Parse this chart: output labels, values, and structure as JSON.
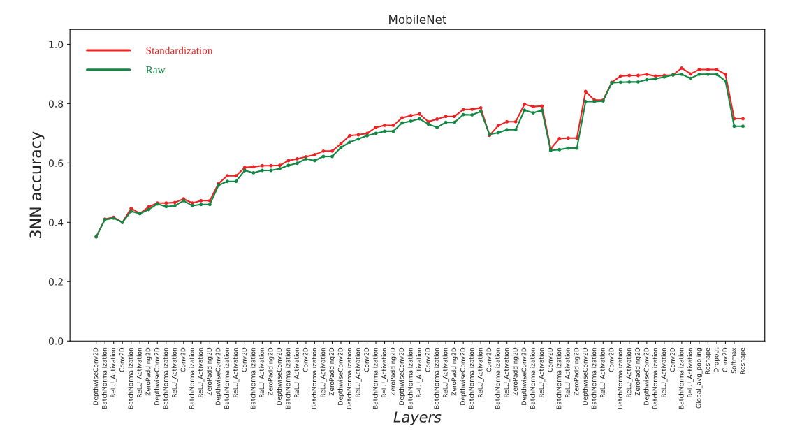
{
  "chart_data": {
    "type": "line",
    "title": "MobileNet",
    "xlabel": "Layers",
    "ylabel": "3NN accuracy",
    "categories": [
      "DepthwiseConv2D",
      "BatchNormalization",
      "ReLU_Activation",
      "Conv2D",
      "BatchNormalization",
      "ReLU_Activation",
      "ZeroPadding2D",
      "DepthwiseConv2D",
      "BatchNormalization",
      "ReLU_Activation",
      "Conv2D",
      "BatchNormalization",
      "ReLU_Activation",
      "ZeroPadding2D",
      "DepthwiseConv2D",
      "BatchNormalization",
      "ReLU_Activation",
      "Conv2D",
      "BatchNormalization",
      "ReLU_Activation",
      "ZeroPadding2D",
      "DepthwiseConv2D",
      "BatchNormalization",
      "ReLU_Activation",
      "Conv2D",
      "BatchNormalization",
      "ReLU_Activation",
      "ZeroPadding2D",
      "DepthwiseConv2D",
      "BatchNormalization",
      "ReLU_Activation",
      "Conv2D",
      "BatchNormalization",
      "ReLU_Activation",
      "ZeroPadding2D",
      "DepthwiseConv2D",
      "BatchNormalization",
      "ReLU_Activation",
      "Conv2D",
      "BatchNormalization",
      "ReLU_Activation",
      "ZeroPadding2D",
      "DepthwiseConv2D",
      "BatchNormalization",
      "ReLU_Activation",
      "Conv2D",
      "BatchNormalization",
      "ReLU_Activation",
      "ZeroPadding2D",
      "DepthwiseConv2D",
      "BatchNormalization",
      "ReLU_Activation",
      "Conv2D",
      "BatchNormalization",
      "ReLU_Activation",
      "ZeroPadding2D",
      "DepthwiseConv2D",
      "BatchNormalization",
      "ReLU_Activation",
      "Conv2D",
      "BatchNormalization",
      "ReLU_Activation",
      "ZeroPadding2D",
      "DepthwiseConv2D",
      "BatchNormalization",
      "ReLU_Activation",
      "Conv2D",
      "BatchNormalization",
      "ReLU_Activation",
      "Global_avg_pooling",
      "Reshape",
      "Dropout",
      "Conv2D",
      "Softmax",
      "Reshape"
    ],
    "series": [
      {
        "name": "Standardization",
        "color": "#ee2222",
        "values": [
          0.351,
          0.411,
          0.417,
          0.4,
          0.447,
          0.43,
          0.452,
          0.465,
          0.465,
          0.467,
          0.479,
          0.465,
          0.473,
          0.473,
          0.531,
          0.557,
          0.557,
          0.585,
          0.587,
          0.591,
          0.591,
          0.592,
          0.608,
          0.614,
          0.621,
          0.628,
          0.64,
          0.64,
          0.665,
          0.692,
          0.695,
          0.7,
          0.72,
          0.727,
          0.727,
          0.752,
          0.76,
          0.765,
          0.739,
          0.748,
          0.757,
          0.757,
          0.78,
          0.781,
          0.786,
          0.693,
          0.726,
          0.739,
          0.739,
          0.798,
          0.79,
          0.792,
          0.648,
          0.682,
          0.684,
          0.684,
          0.841,
          0.812,
          0.812,
          0.872,
          0.893,
          0.895,
          0.895,
          0.899,
          0.893,
          0.895,
          0.897,
          0.92,
          0.9,
          0.915,
          0.915,
          0.915,
          0.899,
          0.749,
          0.749
        ]
      },
      {
        "name": "Raw",
        "color": "#118844",
        "values": [
          0.351,
          0.409,
          0.414,
          0.4,
          0.437,
          0.429,
          0.443,
          0.462,
          0.453,
          0.456,
          0.473,
          0.456,
          0.46,
          0.46,
          0.525,
          0.538,
          0.538,
          0.575,
          0.567,
          0.575,
          0.575,
          0.581,
          0.592,
          0.599,
          0.614,
          0.608,
          0.622,
          0.622,
          0.652,
          0.67,
          0.681,
          0.692,
          0.7,
          0.707,
          0.707,
          0.735,
          0.741,
          0.749,
          0.731,
          0.72,
          0.737,
          0.737,
          0.763,
          0.762,
          0.774,
          0.696,
          0.702,
          0.712,
          0.712,
          0.778,
          0.769,
          0.778,
          0.642,
          0.645,
          0.65,
          0.65,
          0.807,
          0.807,
          0.809,
          0.87,
          0.872,
          0.873,
          0.873,
          0.881,
          0.884,
          0.89,
          0.897,
          0.899,
          0.885,
          0.899,
          0.899,
          0.899,
          0.876,
          0.724,
          0.724
        ]
      }
    ],
    "ylim": [
      0,
      1.05
    ],
    "yticks": [
      {
        "value": 0,
        "label": "0.0"
      },
      {
        "value": 0.2,
        "label": "0.2"
      },
      {
        "value": 0.4,
        "label": "0.4"
      },
      {
        "value": 0.6,
        "label": "0.6"
      },
      {
        "value": 0.8,
        "label": "0.8"
      },
      {
        "value": 1.0,
        "label": "1.0"
      }
    ],
    "legend": "top left",
    "marker": "circle",
    "line_style": "solid",
    "grid": false
  }
}
